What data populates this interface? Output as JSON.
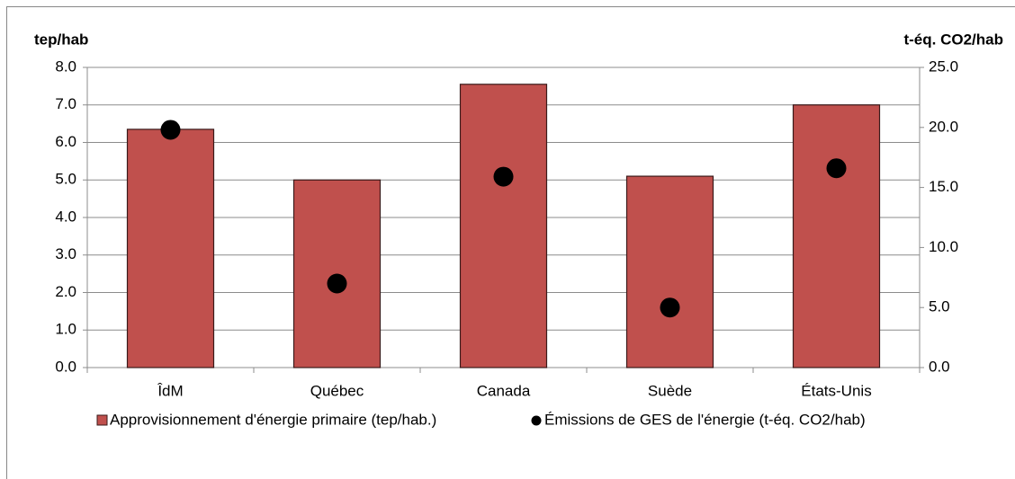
{
  "chart_data": {
    "type": "bar",
    "y_label": "tep/hab",
    "y2_label": "t-éq. CO2/hab",
    "categories": [
      "ÎdM",
      "Québec",
      "Canada",
      "Suède",
      "États-Unis"
    ],
    "series": [
      {
        "name": "Approvisionnement d'énergie primaire (tep/hab.)",
        "type": "bar",
        "color": "#c0504d",
        "values": [
          6.35,
          5.0,
          7.55,
          5.1,
          7.0
        ]
      },
      {
        "name": "Émissions de GES de l'énergie (t-éq. CO2/hab)",
        "type": "scatter",
        "axis": "y2",
        "color": "#000000",
        "values": [
          19.8,
          7.0,
          15.9,
          5.0,
          16.6
        ]
      }
    ],
    "ylim": [
      0,
      8
    ],
    "yticks": [
      {
        "value": 0,
        "label": "0.0"
      },
      {
        "value": 1,
        "label": "1.0"
      },
      {
        "value": 2,
        "label": "2.0"
      },
      {
        "value": 3,
        "label": "3.0"
      },
      {
        "value": 4,
        "label": "4.0"
      },
      {
        "value": 5,
        "label": "5.0"
      },
      {
        "value": 6,
        "label": "6.0"
      },
      {
        "value": 7,
        "label": "7.0"
      },
      {
        "value": 8,
        "label": "8.0"
      }
    ],
    "y2lim": [
      0,
      25
    ],
    "y2ticks": [
      {
        "value": 0,
        "label": "0.0"
      },
      {
        "value": 5,
        "label": "5.0"
      },
      {
        "value": 10,
        "label": "10.0"
      },
      {
        "value": 15,
        "label": "15.0"
      },
      {
        "value": 20,
        "label": "20.0"
      },
      {
        "value": 25,
        "label": "25.0"
      }
    ],
    "grid": true,
    "legend": "bottom"
  }
}
